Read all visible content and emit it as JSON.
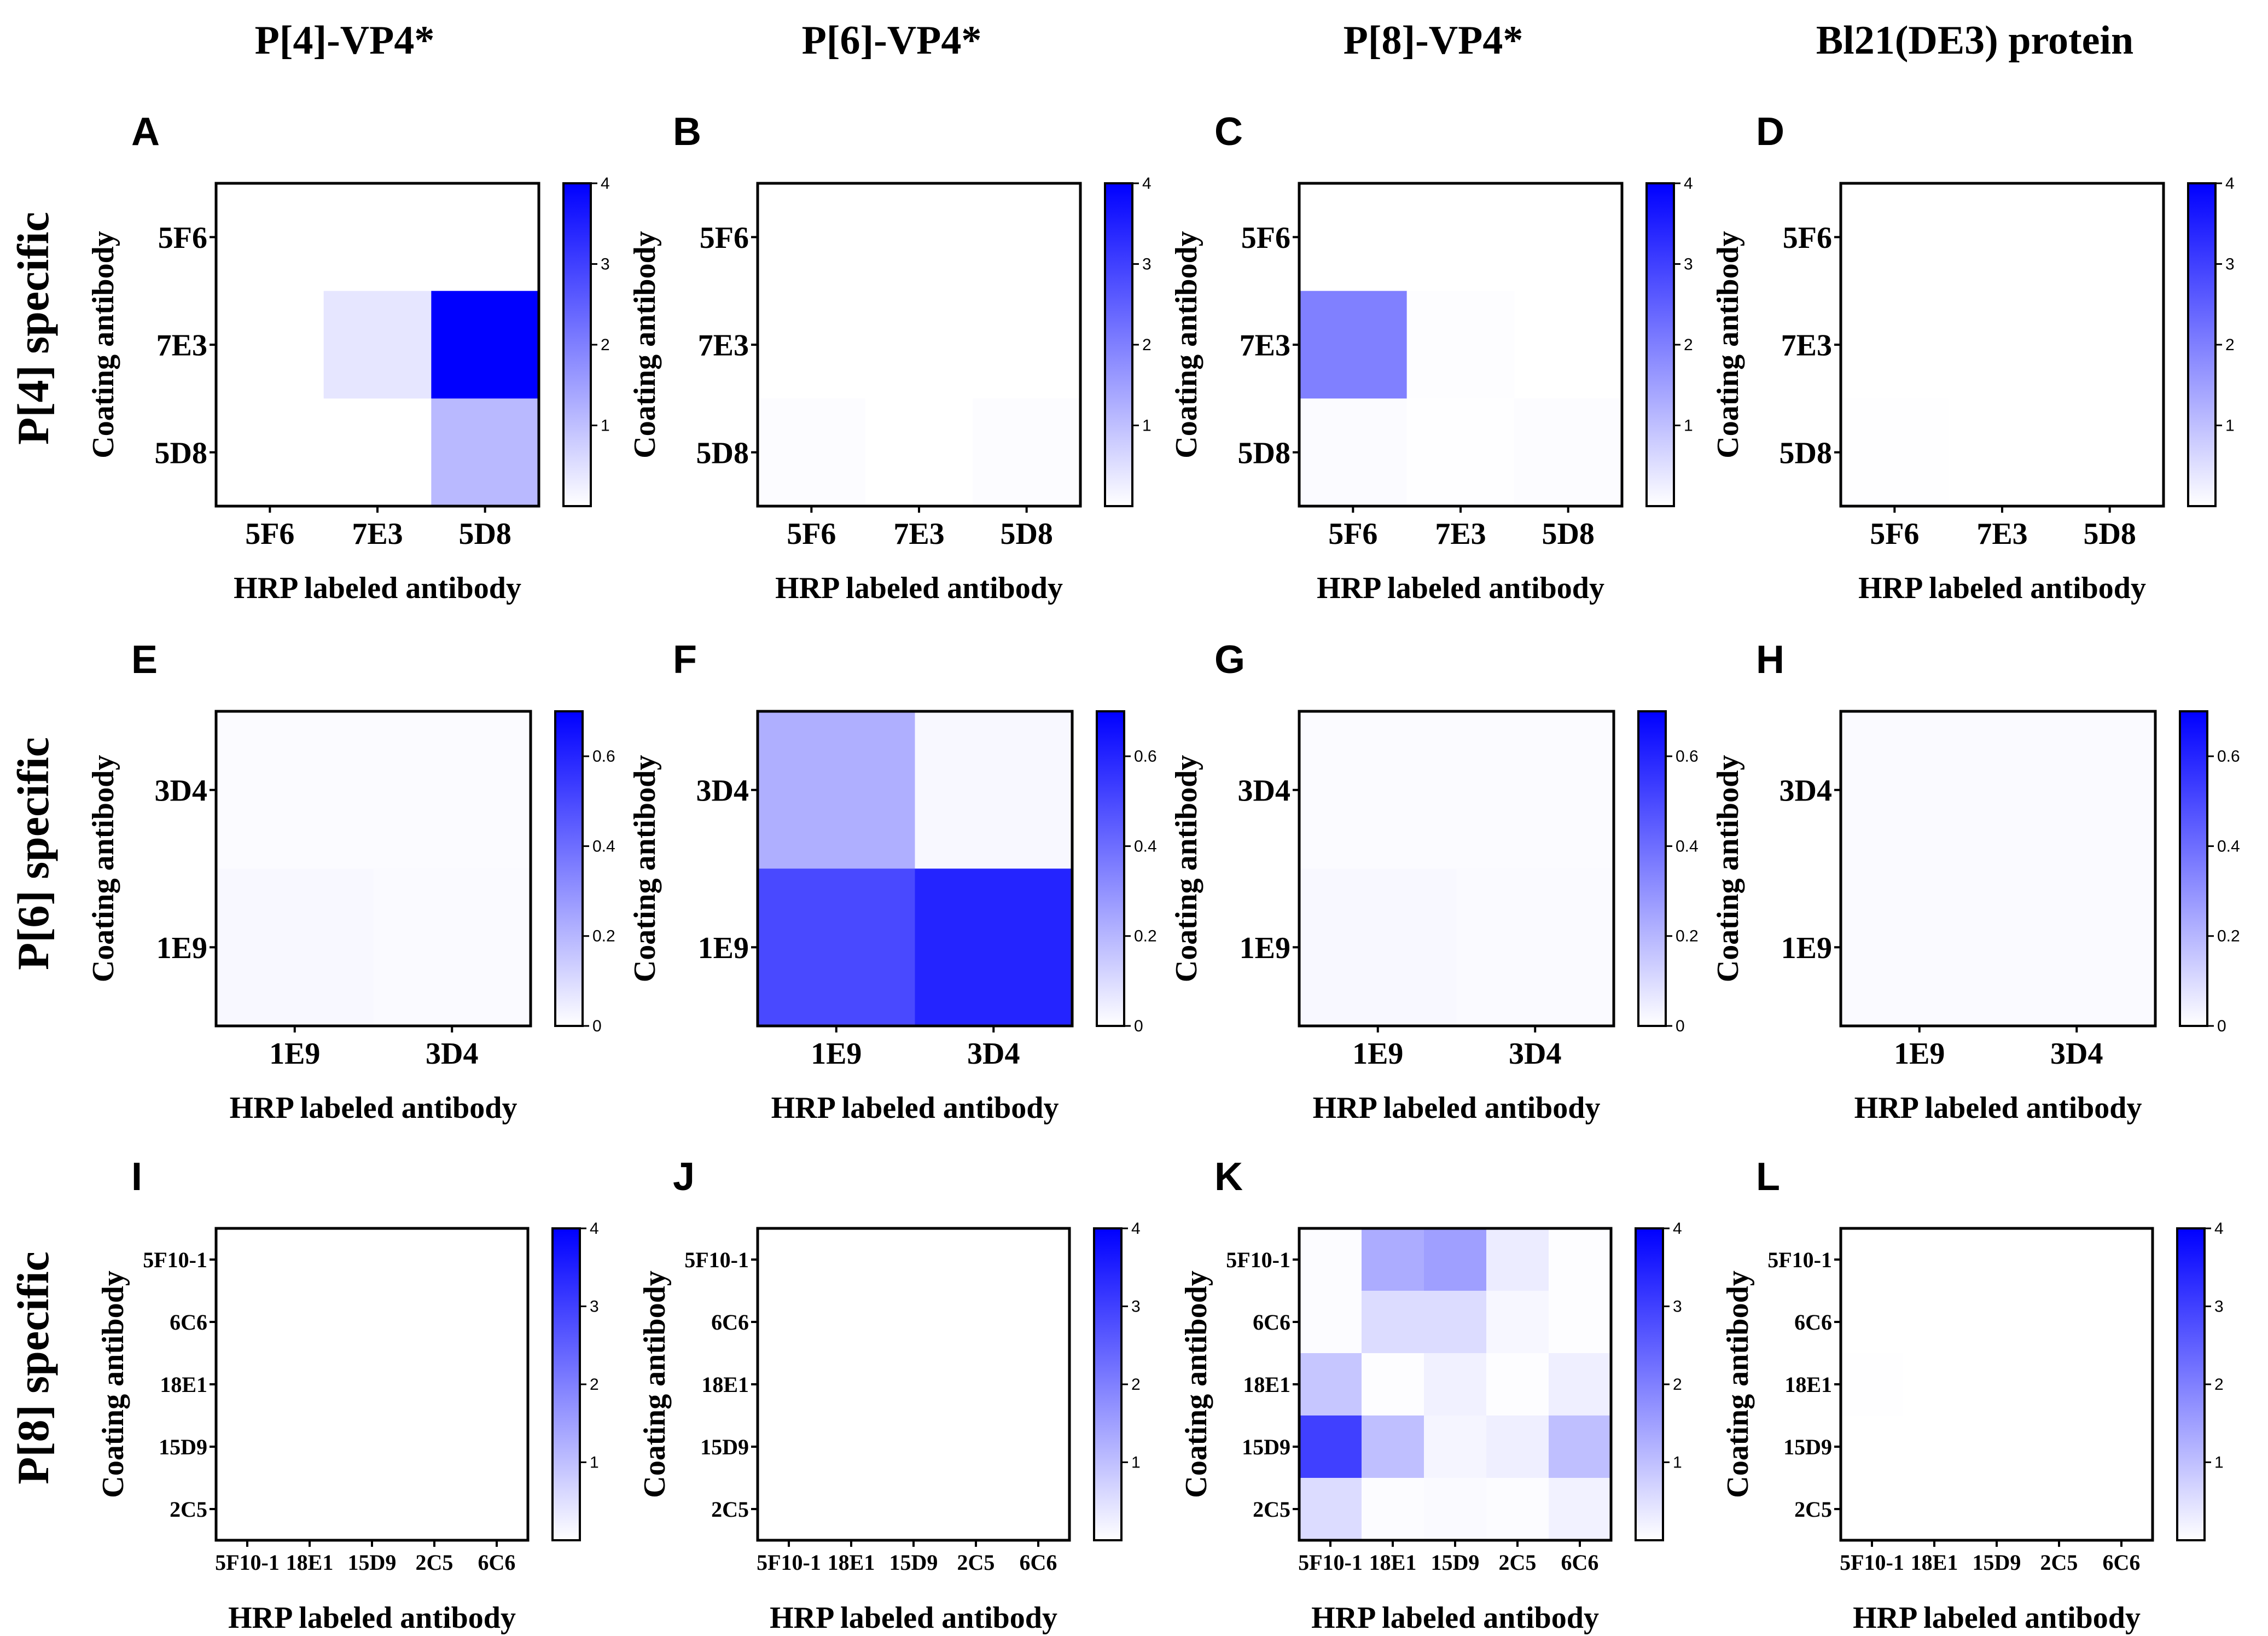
{
  "column_titles": [
    "P[4]-VP4*",
    "P[6]-VP4*",
    "P[8]-VP4*",
    "Bl21(DE3) protein"
  ],
  "row_titles": [
    "P[4] specific",
    "P[6] specific",
    "P[8] specific"
  ],
  "colors": {
    "low": "#ffffff",
    "high": "#0000ff",
    "frame": "#000000"
  },
  "chart_data": [
    {
      "panel": "A",
      "type": "heatmap",
      "row": 0,
      "col": 0,
      "xlabel": "HRP labeled antibody",
      "ylabel": "Coating antibody",
      "x_categories": [
        "5F6",
        "7E3",
        "5D8"
      ],
      "y_categories": [
        "5F6",
        "7E3",
        "5D8"
      ],
      "values": [
        [
          0,
          0,
          0
        ],
        [
          0,
          0.4,
          4.0
        ],
        [
          0,
          0,
          1.1
        ]
      ],
      "colorbar": {
        "min": 0,
        "max": 4,
        "ticks": [
          1,
          2,
          3,
          4
        ]
      }
    },
    {
      "panel": "B",
      "type": "heatmap",
      "row": 0,
      "col": 1,
      "xlabel": "HRP labeled antibody",
      "ylabel": "Coating antibody",
      "x_categories": [
        "5F6",
        "7E3",
        "5D8"
      ],
      "y_categories": [
        "5F6",
        "7E3",
        "5D8"
      ],
      "values": [
        [
          0,
          0,
          0
        ],
        [
          0,
          0,
          0
        ],
        [
          0.04,
          0,
          0.04
        ]
      ],
      "colorbar": {
        "min": 0,
        "max": 4,
        "ticks": [
          1,
          2,
          3,
          4
        ]
      }
    },
    {
      "panel": "C",
      "type": "heatmap",
      "row": 0,
      "col": 2,
      "xlabel": "HRP labeled antibody",
      "ylabel": "Coating antibody",
      "x_categories": [
        "5F6",
        "7E3",
        "5D8"
      ],
      "y_categories": [
        "5F6",
        "7E3",
        "5D8"
      ],
      "values": [
        [
          0,
          0,
          0
        ],
        [
          2.0,
          0.03,
          0
        ],
        [
          0.06,
          0.02,
          0.04
        ]
      ],
      "colorbar": {
        "min": 0,
        "max": 4,
        "ticks": [
          1,
          2,
          3,
          4
        ]
      }
    },
    {
      "panel": "D",
      "type": "heatmap",
      "row": 0,
      "col": 3,
      "xlabel": "HRP labeled antibody",
      "ylabel": "Coating antibody",
      "x_categories": [
        "5F6",
        "7E3",
        "5D8"
      ],
      "y_categories": [
        "5F6",
        "7E3",
        "5D8"
      ],
      "values": [
        [
          0,
          0,
          0
        ],
        [
          0,
          0,
          0
        ],
        [
          0.02,
          0,
          0
        ]
      ],
      "colorbar": {
        "min": 0,
        "max": 4,
        "ticks": [
          1,
          2,
          3,
          4
        ]
      }
    },
    {
      "panel": "E",
      "type": "heatmap",
      "row": 1,
      "col": 0,
      "xlabel": "HRP labeled antibody",
      "ylabel": "Coating antibody",
      "x_categories": [
        "1E9",
        "3D4"
      ],
      "y_categories": [
        "3D4",
        "1E9"
      ],
      "values": [
        [
          0.01,
          0.01
        ],
        [
          0.02,
          0.015
        ]
      ],
      "colorbar": {
        "min": 0,
        "max": 0.7,
        "ticks": [
          0,
          0.2,
          0.4,
          0.6
        ]
      }
    },
    {
      "panel": "F",
      "type": "heatmap",
      "row": 1,
      "col": 1,
      "xlabel": "HRP labeled antibody",
      "ylabel": "Coating antibody",
      "x_categories": [
        "1E9",
        "3D4"
      ],
      "y_categories": [
        "3D4",
        "1E9"
      ],
      "values": [
        [
          0.22,
          0.02
        ],
        [
          0.5,
          0.6
        ]
      ],
      "colorbar": {
        "min": 0,
        "max": 0.7,
        "ticks": [
          0,
          0.2,
          0.4,
          0.6
        ]
      }
    },
    {
      "panel": "G",
      "type": "heatmap",
      "row": 1,
      "col": 2,
      "xlabel": "HRP labeled antibody",
      "ylabel": "Coating antibody",
      "x_categories": [
        "1E9",
        "3D4"
      ],
      "y_categories": [
        "3D4",
        "1E9"
      ],
      "values": [
        [
          0.01,
          0.01
        ],
        [
          0.02,
          0.015
        ]
      ],
      "colorbar": {
        "min": 0,
        "max": 0.7,
        "ticks": [
          0,
          0.2,
          0.4,
          0.6
        ]
      }
    },
    {
      "panel": "H",
      "type": "heatmap",
      "row": 1,
      "col": 3,
      "xlabel": "HRP labeled antibody",
      "ylabel": "Coating antibody",
      "x_categories": [
        "1E9",
        "3D4"
      ],
      "y_categories": [
        "3D4",
        "1E9"
      ],
      "values": [
        [
          0.015,
          0.015
        ],
        [
          0.015,
          0.015
        ]
      ],
      "colorbar": {
        "min": 0,
        "max": 0.7,
        "ticks": [
          0,
          0.2,
          0.4,
          0.6
        ]
      }
    },
    {
      "panel": "I",
      "type": "heatmap",
      "row": 2,
      "col": 0,
      "xlabel": "HRP labeled antibody",
      "ylabel": "Coating antibody",
      "x_tick_labels": [
        "5F10-1",
        "18E1",
        "15D9",
        "2C5",
        "6C6"
      ],
      "y_categories": [
        "5F10-1",
        "6C6",
        "18E1",
        "15D9",
        "2C5"
      ],
      "values": [
        [
          0,
          0,
          0,
          0,
          0
        ],
        [
          0,
          0,
          0,
          0,
          0
        ],
        [
          0,
          0,
          0,
          0,
          0
        ],
        [
          0,
          0,
          0,
          0,
          0
        ],
        [
          0,
          0,
          0,
          0,
          0
        ]
      ],
      "colorbar": {
        "min": 0,
        "max": 4,
        "ticks": [
          1,
          2,
          3,
          4
        ]
      }
    },
    {
      "panel": "J",
      "type": "heatmap",
      "row": 2,
      "col": 1,
      "xlabel": "HRP labeled antibody",
      "ylabel": "Coating antibody",
      "x_tick_labels": [
        "5F10-1",
        "18E1",
        "15D9",
        "2C5",
        "6C6"
      ],
      "y_categories": [
        "5F10-1",
        "6C6",
        "18E1",
        "15D9",
        "2C5"
      ],
      "values": [
        [
          0,
          0,
          0,
          0,
          0
        ],
        [
          0,
          0,
          0,
          0,
          0
        ],
        [
          0,
          0,
          0,
          0,
          0
        ],
        [
          0,
          0,
          0,
          0,
          0
        ],
        [
          0,
          0,
          0,
          0,
          0
        ]
      ],
      "colorbar": {
        "min": 0,
        "max": 4,
        "ticks": [
          1,
          2,
          3,
          4
        ]
      }
    },
    {
      "panel": "K",
      "type": "heatmap",
      "row": 2,
      "col": 2,
      "xlabel": "HRP labeled antibody",
      "ylabel": "Coating antibody",
      "x_tick_labels": [
        "5F10-1",
        "18E1",
        "15D9",
        "2C5",
        "6C6"
      ],
      "y_categories": [
        "5F10-1",
        "6C6",
        "18E1",
        "15D9",
        "2C5"
      ],
      "values": [
        [
          0.05,
          1.3,
          1.5,
          0.3,
          0.03
        ],
        [
          0.05,
          0.55,
          0.55,
          0.12,
          0.03
        ],
        [
          0.9,
          0.03,
          0.22,
          0.03,
          0.25
        ],
        [
          3.0,
          1.0,
          0.15,
          0.25,
          1.0
        ],
        [
          0.55,
          0.05,
          0.08,
          0.05,
          0.2
        ]
      ],
      "colorbar": {
        "min": 0,
        "max": 4,
        "ticks": [
          1,
          2,
          3,
          4
        ]
      }
    },
    {
      "panel": "L",
      "type": "heatmap",
      "row": 2,
      "col": 3,
      "xlabel": "HRP labeled antibody",
      "ylabel": "Coating antibody",
      "x_tick_labels": [
        "5F10-1",
        "18E1",
        "15D9",
        "2C5",
        "6C6"
      ],
      "y_categories": [
        "5F10-1",
        "6C6",
        "18E1",
        "15D9",
        "2C5"
      ],
      "values": [
        [
          0,
          0,
          0,
          0,
          0
        ],
        [
          0,
          0,
          0,
          0,
          0
        ],
        [
          0.02,
          0,
          0,
          0,
          0
        ],
        [
          0,
          0,
          0,
          0,
          0
        ],
        [
          0,
          0,
          0,
          0,
          0
        ]
      ],
      "colorbar": {
        "min": 0,
        "max": 4,
        "ticks": [
          1,
          2,
          3,
          4
        ]
      }
    }
  ]
}
